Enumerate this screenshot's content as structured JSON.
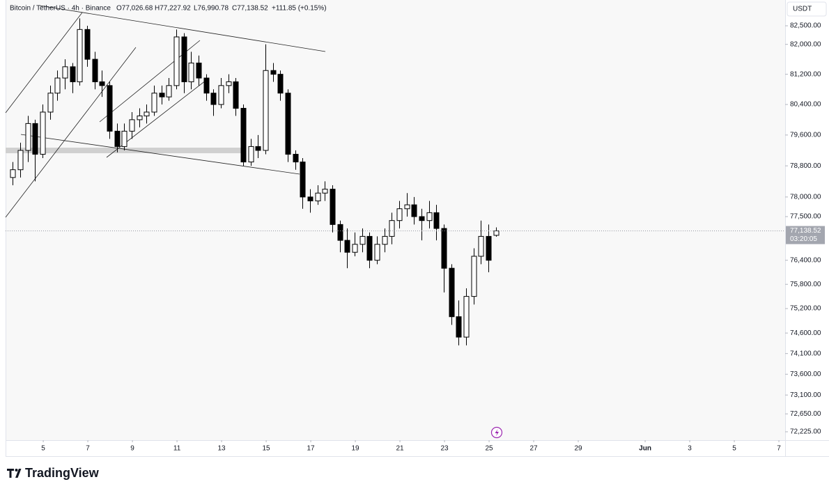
{
  "chart_data": {
    "type": "candlestick",
    "header": {
      "symbol": "Bitcoin / TetherUS · 4h · Binance",
      "ohlc_labels": [
        "O77,026.68",
        "H77,227.92",
        "L76,990.78",
        "C77,138.52"
      ],
      "change": "+111.85 (+0.15%)"
    },
    "currency": "USDT",
    "brand": "TradingView",
    "log_scale": true,
    "up_color": "#ffffff",
    "down_color": "#000000",
    "outline_color": "#000000",
    "x": [
      3.63,
      3.97,
      4.3,
      4.63,
      4.97,
      5.3,
      5.63,
      5.97,
      6.3,
      6.63,
      6.97,
      7.3,
      7.63,
      7.97,
      8.3,
      8.63,
      8.97,
      9.3,
      9.63,
      9.97,
      10.3,
      10.63,
      10.97,
      11.3,
      11.63,
      11.97,
      12.3,
      12.63,
      12.97,
      13.3,
      13.63,
      13.97,
      14.3,
      14.63,
      14.97,
      15.3,
      15.63,
      15.97,
      16.3,
      16.63,
      16.97,
      17.3,
      17.63,
      17.97,
      18.3,
      18.63,
      18.97,
      19.3,
      19.63,
      19.97,
      20.3,
      20.63,
      20.97,
      21.3,
      21.63,
      21.97,
      22.3,
      22.63,
      22.97,
      23.3,
      23.63,
      23.97,
      24.3,
      24.63,
      24.97,
      25.3
    ],
    "open": [
      78500,
      78700,
      79200,
      79900,
      79100,
      80200,
      80700,
      81100,
      81400,
      81000,
      82400,
      81600,
      81000,
      80900,
      79700,
      79300,
      79700,
      80000,
      80100,
      80200,
      80700,
      80600,
      80900,
      82200,
      81000,
      81500,
      81100,
      80700,
      80400,
      80900,
      81000,
      80300,
      78900,
      79300,
      79200,
      81300,
      81200,
      80700,
      79100,
      78900,
      78000,
      77900,
      78100,
      78200,
      77300,
      76900,
      76600,
      76800,
      77000,
      76400,
      76800,
      77000,
      77400,
      77700,
      77800,
      77500,
      77400,
      77600,
      77200,
      76200,
      75000,
      74500,
      75500,
      76500,
      77000,
      77026.68
    ],
    "high": [
      78900,
      79400,
      80100,
      80000,
      80400,
      80900,
      81300,
      81600,
      81500,
      82700,
      82500,
      81800,
      81300,
      81000,
      79900,
      79900,
      80200,
      80300,
      80400,
      80900,
      80900,
      81100,
      82400,
      82300,
      81800,
      81700,
      81200,
      80800,
      81100,
      81200,
      81100,
      80400,
      79500,
      79600,
      82000,
      81500,
      81300,
      80800,
      79200,
      79000,
      78200,
      78300,
      78400,
      78300,
      77400,
      77200,
      77100,
      77200,
      77100,
      77000,
      77200,
      77600,
      77900,
      78100,
      78000,
      77700,
      77900,
      77800,
      77300,
      76300,
      75400,
      75700,
      76700,
      77400,
      77300,
      77227.92
    ],
    "low": [
      78300,
      78500,
      78900,
      78400,
      79000,
      80000,
      80500,
      80800,
      80700,
      80900,
      81400,
      80800,
      80600,
      79500,
      79150,
      79200,
      79500,
      79800,
      79900,
      80100,
      80400,
      80500,
      80800,
      80700,
      80800,
      80900,
      80500,
      80100,
      80300,
      80700,
      80100,
      78800,
      78800,
      79000,
      79100,
      81000,
      80500,
      78900,
      78700,
      77700,
      77600,
      77800,
      77900,
      77100,
      76600,
      76200,
      76500,
      76600,
      76200,
      76300,
      76600,
      76800,
      77200,
      77500,
      77300,
      76900,
      77200,
      76900,
      75600,
      74800,
      74300,
      74300,
      75300,
      76300,
      76100,
      76990.78
    ],
    "close": [
      78700,
      79200,
      79900,
      79100,
      80200,
      80700,
      81100,
      81400,
      81000,
      82400,
      81600,
      81000,
      80900,
      79700,
      79300,
      79700,
      80000,
      80100,
      80200,
      80700,
      80600,
      80900,
      82200,
      81000,
      81500,
      81100,
      80700,
      80400,
      80900,
      81000,
      80300,
      78900,
      79300,
      79200,
      81300,
      81200,
      80700,
      79100,
      78900,
      78000,
      77900,
      78100,
      78200,
      77300,
      76900,
      76600,
      76800,
      77000,
      76400,
      76800,
      77000,
      77400,
      77700,
      77800,
      77500,
      77400,
      77600,
      77200,
      76200,
      75000,
      74500,
      75500,
      76500,
      77000,
      76400,
      77138.52
    ],
    "last_price": {
      "value": 77138.52,
      "label": "77,138.52"
    },
    "countdown": "03:20:05",
    "xlim": [
      3.31,
      38.28
    ],
    "xticks": [
      5,
      7,
      9,
      11,
      13,
      15,
      17,
      19,
      21,
      23,
      25,
      27,
      29,
      {
        "value": 32,
        "label": "Jun"
      },
      {
        "value": 34,
        "label": "3"
      },
      {
        "value": 36,
        "label": "5"
      },
      {
        "value": 38,
        "label": "7"
      }
    ],
    "ylim": [
      72027,
      83200
    ],
    "yticks": [
      {
        "value": 82500,
        "label": "82,500.00"
      },
      {
        "value": 82000,
        "label": "82,000.00"
      },
      {
        "value": 81200,
        "label": "81,200.00"
      },
      {
        "value": 80400,
        "label": "80,400.00"
      },
      {
        "value": 79600,
        "label": "79,600.00"
      },
      {
        "value": 78800,
        "label": "78,800.00"
      },
      {
        "value": 78000,
        "label": "78,000.00"
      },
      {
        "value": 77500,
        "label": "77,500.00"
      },
      {
        "value": 76400,
        "label": "76,400.00"
      },
      {
        "value": 75800,
        "label": "75,800.00"
      },
      {
        "value": 75200,
        "label": "75,200.00"
      },
      {
        "value": 74600,
        "label": "74,600.00"
      },
      {
        "value": 74100,
        "label": "74,100.00"
      },
      {
        "value": 73600,
        "label": "73,600.00"
      },
      {
        "value": 73100,
        "label": "73,100.00"
      },
      {
        "value": 72650,
        "label": "72,650.00"
      },
      {
        "value": 72225,
        "label": "72,225.00"
      }
    ]
  }
}
